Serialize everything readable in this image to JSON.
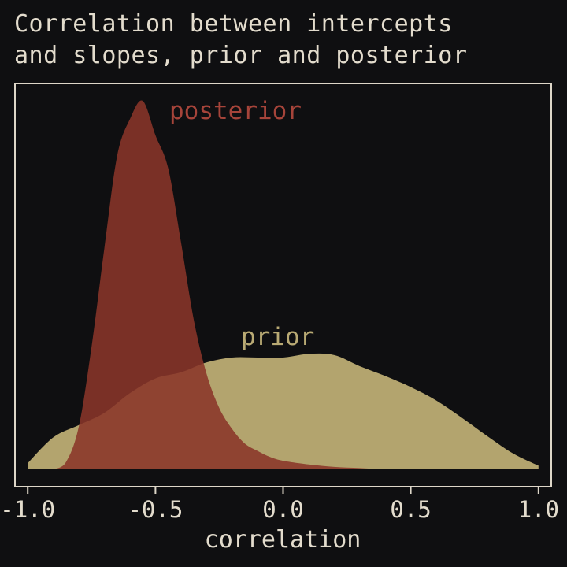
{
  "chart_data": {
    "type": "area",
    "title_lines": [
      "Correlation between intercepts",
      "and slopes, prior and posterior"
    ],
    "xlabel": "correlation",
    "ylabel": "",
    "xlim": [
      -1.05,
      1.05
    ],
    "ylim": [
      0,
      3.05
    ],
    "xticks": [
      -1.0,
      -0.5,
      0.0,
      0.5,
      1.0
    ],
    "xtick_labels": [
      "-1.0",
      "-0.5",
      "0.0",
      "0.5",
      "1.0"
    ],
    "yaxis_visible": false,
    "grid": false,
    "legend": "none (direct labels)",
    "series": [
      {
        "name": "prior",
        "color": "#b3a46e",
        "x": [
          -1.0,
          -0.9,
          -0.8,
          -0.7,
          -0.6,
          -0.5,
          -0.4,
          -0.3,
          -0.2,
          -0.1,
          0.0,
          0.1,
          0.2,
          0.3,
          0.4,
          0.5,
          0.6,
          0.7,
          0.8,
          0.9,
          1.0
        ],
        "density": [
          0.05,
          0.26,
          0.36,
          0.46,
          0.62,
          0.74,
          0.79,
          0.87,
          0.91,
          0.91,
          0.91,
          0.94,
          0.93,
          0.84,
          0.76,
          0.67,
          0.56,
          0.42,
          0.27,
          0.13,
          0.03
        ]
      },
      {
        "name": "posterior",
        "color": "#8a3529",
        "x": [
          -0.9,
          -0.85,
          -0.8,
          -0.75,
          -0.7,
          -0.65,
          -0.6,
          -0.55,
          -0.5,
          -0.45,
          -0.4,
          -0.35,
          -0.3,
          -0.25,
          -0.2,
          -0.15,
          -0.1,
          -0.05,
          0.0,
          0.1,
          0.2,
          0.3,
          0.4
        ],
        "density": [
          0.0,
          0.06,
          0.35,
          1.0,
          1.8,
          2.55,
          2.85,
          3.0,
          2.72,
          2.45,
          1.85,
          1.22,
          0.78,
          0.5,
          0.33,
          0.21,
          0.15,
          0.1,
          0.07,
          0.04,
          0.02,
          0.01,
          0.0
        ]
      }
    ]
  }
}
